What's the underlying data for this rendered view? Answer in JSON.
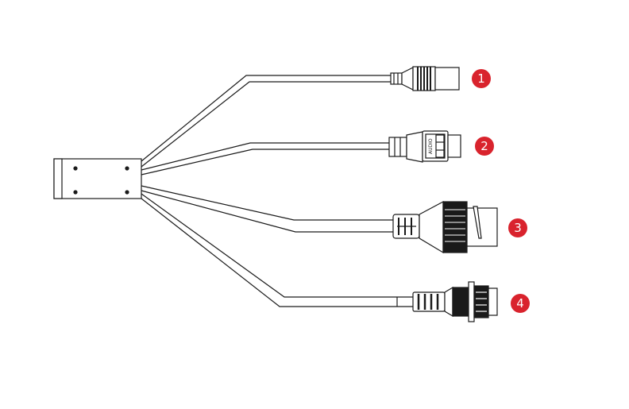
{
  "diagram": {
    "connectors": [
      {
        "number": "1"
      },
      {
        "number": "2",
        "label": "AUDIO"
      },
      {
        "number": "3"
      },
      {
        "number": "4"
      }
    ],
    "badge_color": "#d9232d",
    "line_color": "#1a1a1a"
  }
}
